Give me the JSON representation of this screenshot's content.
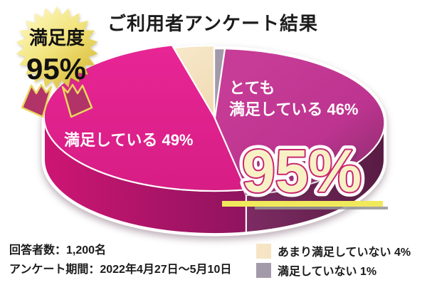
{
  "title": "ご利用者アンケート結果",
  "badge": {
    "line1": "満足度",
    "line2": "95%"
  },
  "chart_data": {
    "type": "pie",
    "title": "ご利用者アンケート結果",
    "unit": "%",
    "slices_clockwise_from_top": [
      {
        "label": "満足していない",
        "value": 1,
        "color": "#a29aa9"
      },
      {
        "label": "とても満足している",
        "value": 46,
        "color": "#c13693"
      },
      {
        "label": "満足している",
        "value": 49,
        "color": "#e62594"
      },
      {
        "label": "あまり満足していない",
        "value": 4,
        "color": "#f6e4c5"
      }
    ],
    "highlight_total": "95%",
    "legend_position": "bottom-right"
  },
  "pie_labels": {
    "very_satisfied_line1": "とても",
    "very_satisfied_line2": "満足している 46%",
    "satisfied": "満足している  49%",
    "big_percent": "95%"
  },
  "legend": {
    "items": [
      {
        "label": "あまり満足していない  4%",
        "swatch": "#f6e4c5"
      },
      {
        "label": "満足していない  1%",
        "swatch": "#a29aa9"
      }
    ]
  },
  "footer": {
    "respondents": "回答者数：1,200名",
    "period": "アンケート期間：2022年4月27日〜5月10日"
  }
}
